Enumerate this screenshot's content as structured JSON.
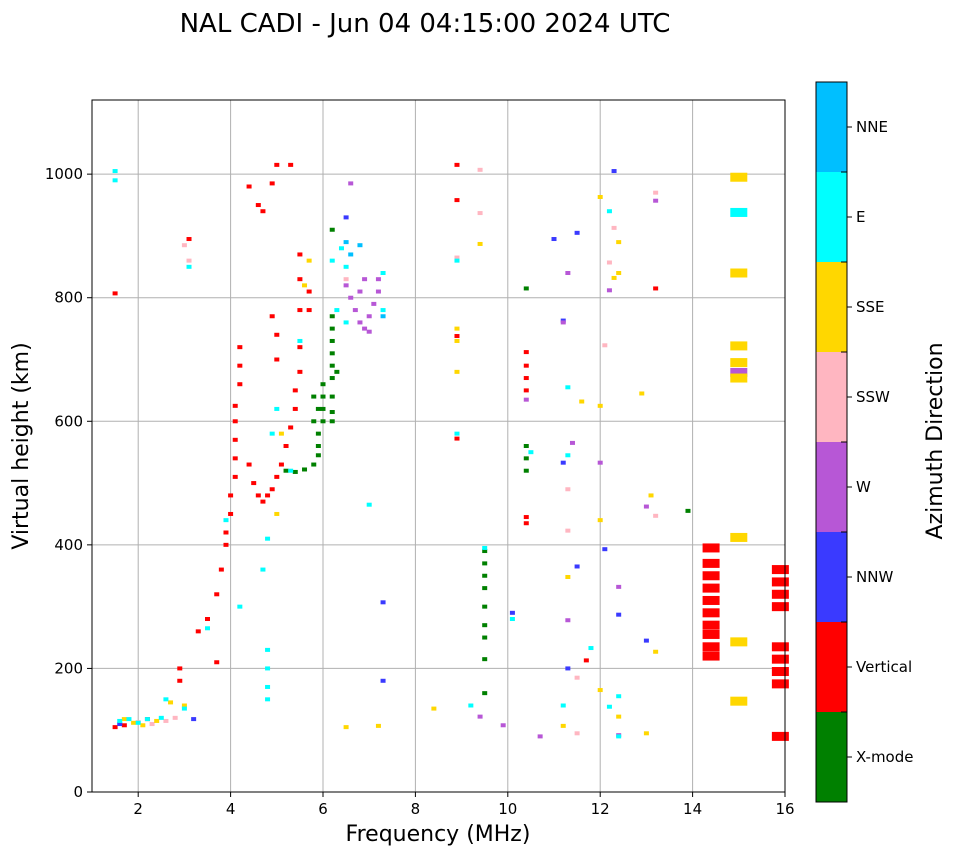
{
  "chart_data": {
    "type": "scatter",
    "title": "NAL CADI - Jun 04 04:15:00 2024 UTC",
    "xlabel": "Frequency (MHz)",
    "ylabel": "Virtual height (km)",
    "xlim": [
      1,
      16
    ],
    "ylim": [
      0,
      1120
    ],
    "xticks": [
      2,
      4,
      6,
      8,
      10,
      12,
      14,
      16
    ],
    "yticks": [
      0,
      200,
      400,
      600,
      800,
      1000
    ],
    "grid": true,
    "colorbar": {
      "label": "Azimuth Direction",
      "categories": [
        {
          "name": "X-mode",
          "color": "#008000"
        },
        {
          "name": "Vertical",
          "color": "#ff0000"
        },
        {
          "name": "NNW",
          "color": "#3a3aff"
        },
        {
          "name": "W",
          "color": "#b757d6"
        },
        {
          "name": "SSW",
          "color": "#ffb6c1"
        },
        {
          "name": "SSE",
          "color": "#ffd700"
        },
        {
          "name": "E",
          "color": "#00ffff"
        },
        {
          "name": "NNE",
          "color": "#00bfff"
        }
      ]
    },
    "series": [
      {
        "name": "X-mode",
        "points": [
          [
            5.2,
            520
          ],
          [
            5.4,
            518
          ],
          [
            5.6,
            522
          ],
          [
            5.8,
            530
          ],
          [
            5.9,
            545
          ],
          [
            5.9,
            560
          ],
          [
            5.9,
            580
          ],
          [
            6.0,
            600
          ],
          [
            6.0,
            620
          ],
          [
            6.0,
            640
          ],
          [
            6.0,
            660
          ],
          [
            6.2,
            640
          ],
          [
            6.2,
            670
          ],
          [
            6.2,
            690
          ],
          [
            6.2,
            710
          ],
          [
            6.2,
            730
          ],
          [
            6.2,
            750
          ],
          [
            5.8,
            600
          ],
          [
            5.8,
            640
          ],
          [
            5.9,
            620
          ],
          [
            6.2,
            615
          ],
          [
            6.2,
            600
          ],
          [
            6.3,
            680
          ],
          [
            6.2,
            770
          ],
          [
            9.5,
            390
          ],
          [
            9.5,
            370
          ],
          [
            9.5,
            350
          ],
          [
            9.5,
            330
          ],
          [
            9.5,
            300
          ],
          [
            9.5,
            270
          ],
          [
            9.5,
            250
          ],
          [
            9.5,
            215
          ],
          [
            9.5,
            160
          ],
          [
            10.4,
            560
          ],
          [
            10.4,
            540
          ],
          [
            10.4,
            520
          ],
          [
            10.4,
            815
          ],
          [
            13.9,
            455
          ],
          [
            6.2,
            910
          ]
        ]
      },
      {
        "name": "Vertical",
        "points": [
          [
            1.5,
            105
          ],
          [
            1.5,
            807
          ],
          [
            2.9,
            200
          ],
          [
            2.9,
            180
          ],
          [
            3.3,
            260
          ],
          [
            3.5,
            280
          ],
          [
            3.7,
            320
          ],
          [
            3.8,
            360
          ],
          [
            3.9,
            400
          ],
          [
            3.9,
            420
          ],
          [
            4.0,
            450
          ],
          [
            4.0,
            480
          ],
          [
            4.1,
            510
          ],
          [
            4.1,
            540
          ],
          [
            4.1,
            570
          ],
          [
            4.1,
            600
          ],
          [
            4.1,
            625
          ],
          [
            4.2,
            660
          ],
          [
            4.2,
            690
          ],
          [
            4.2,
            720
          ],
          [
            4.4,
            530
          ],
          [
            4.5,
            500
          ],
          [
            4.6,
            480
          ],
          [
            4.7,
            470
          ],
          [
            4.8,
            480
          ],
          [
            4.9,
            490
          ],
          [
            5.0,
            510
          ],
          [
            5.1,
            530
          ],
          [
            5.2,
            560
          ],
          [
            5.3,
            590
          ],
          [
            5.4,
            620
          ],
          [
            5.4,
            650
          ],
          [
            5.5,
            680
          ],
          [
            5.5,
            720
          ],
          [
            5.5,
            780
          ],
          [
            5.5,
            830
          ],
          [
            5.5,
            870
          ],
          [
            5.0,
            700
          ],
          [
            5.0,
            740
          ],
          [
            4.9,
            770
          ],
          [
            4.4,
            980
          ],
          [
            4.6,
            950
          ],
          [
            4.7,
            940
          ],
          [
            4.9,
            985
          ],
          [
            5.0,
            1015
          ],
          [
            5.3,
            1015
          ],
          [
            5.7,
            810
          ],
          [
            5.7,
            780
          ],
          [
            3.7,
            210
          ],
          [
            3.1,
            895
          ],
          [
            8.9,
            1015
          ],
          [
            8.9,
            958
          ],
          [
            8.9,
            738
          ],
          [
            8.9,
            572
          ],
          [
            10.4,
            712
          ],
          [
            10.4,
            690
          ],
          [
            10.4,
            670
          ],
          [
            10.4,
            650
          ],
          [
            10.4,
            445
          ],
          [
            10.4,
            435
          ],
          [
            14.4,
            395
          ],
          [
            14.4,
            370
          ],
          [
            14.4,
            350
          ],
          [
            14.4,
            330
          ],
          [
            14.4,
            310
          ],
          [
            14.4,
            290
          ],
          [
            14.4,
            270
          ],
          [
            14.4,
            255
          ],
          [
            14.4,
            235
          ],
          [
            14.4,
            220
          ],
          [
            15.9,
            360
          ],
          [
            15.9,
            340
          ],
          [
            15.9,
            320
          ],
          [
            15.9,
            300
          ],
          [
            15.9,
            235
          ],
          [
            15.9,
            215
          ],
          [
            15.9,
            195
          ],
          [
            15.9,
            175
          ],
          [
            15.9,
            90
          ],
          [
            13.2,
            815
          ],
          [
            11.7,
            213
          ],
          [
            1.7,
            108
          ],
          [
            2.2,
            118
          ]
        ]
      },
      {
        "name": "NNW",
        "points": [
          [
            6.5,
            930
          ],
          [
            12.3,
            1005
          ],
          [
            11.5,
            905
          ],
          [
            11.0,
            895
          ],
          [
            11.2,
            763
          ],
          [
            10.1,
            290
          ],
          [
            12.4,
            287
          ],
          [
            11.5,
            365
          ],
          [
            12.1,
            393
          ],
          [
            13.0,
            245
          ],
          [
            11.3,
            200
          ],
          [
            11.2,
            533
          ],
          [
            7.3,
            307
          ],
          [
            7.3,
            180
          ],
          [
            3.2,
            118
          ],
          [
            1.6,
            110
          ]
        ]
      },
      {
        "name": "W",
        "points": [
          [
            6.5,
            820
          ],
          [
            6.6,
            800
          ],
          [
            6.7,
            780
          ],
          [
            6.8,
            760
          ],
          [
            6.9,
            750
          ],
          [
            7.0,
            770
          ],
          [
            7.1,
            790
          ],
          [
            7.2,
            810
          ],
          [
            7.2,
            830
          ],
          [
            6.9,
            830
          ],
          [
            6.8,
            810
          ],
          [
            7.0,
            745
          ],
          [
            6.6,
            985
          ],
          [
            11.3,
            840
          ],
          [
            11.2,
            760
          ],
          [
            11.3,
            278
          ],
          [
            12.4,
            332
          ],
          [
            12.0,
            533
          ],
          [
            10.4,
            635
          ],
          [
            11.4,
            565
          ],
          [
            13.2,
            957
          ],
          [
            15.0,
            679
          ],
          [
            13.0,
            462
          ],
          [
            10.7,
            90
          ],
          [
            9.9,
            108
          ],
          [
            12.2,
            812
          ],
          [
            9.4,
            122
          ],
          [
            12.4,
            92
          ]
        ]
      },
      {
        "name": "SSW",
        "points": [
          [
            2.0,
            113
          ],
          [
            2.3,
            110
          ],
          [
            2.6,
            115
          ],
          [
            2.8,
            120
          ],
          [
            3.0,
            885
          ],
          [
            3.1,
            860
          ],
          [
            8.9,
            865
          ],
          [
            9.4,
            1007
          ],
          [
            9.4,
            937
          ],
          [
            12.3,
            913
          ],
          [
            13.2,
            970
          ],
          [
            12.2,
            857
          ],
          [
            11.3,
            490
          ],
          [
            11.3,
            423
          ],
          [
            11.5,
            185
          ],
          [
            11.5,
            95
          ],
          [
            13.2,
            447
          ],
          [
            12.1,
            723
          ],
          [
            6.5,
            830
          ]
        ]
      },
      {
        "name": "SSE",
        "points": [
          [
            1.7,
            118
          ],
          [
            1.9,
            112
          ],
          [
            2.1,
            108
          ],
          [
            2.4,
            115
          ],
          [
            2.7,
            145
          ],
          [
            3.0,
            140
          ],
          [
            5.0,
            450
          ],
          [
            5.1,
            580
          ],
          [
            5.7,
            860
          ],
          [
            5.6,
            820
          ],
          [
            8.9,
            750
          ],
          [
            8.9,
            730
          ],
          [
            8.9,
            680
          ],
          [
            9.4,
            887
          ],
          [
            12.0,
            963
          ],
          [
            12.4,
            890
          ],
          [
            12.4,
            840
          ],
          [
            12.3,
            832
          ],
          [
            15.0,
            840
          ],
          [
            15.0,
            722
          ],
          [
            15.0,
            695
          ],
          [
            15.0,
            670
          ],
          [
            15.0,
            412
          ],
          [
            15.0,
            243
          ],
          [
            15.0,
            147
          ],
          [
            13.2,
            227
          ],
          [
            13.1,
            480
          ],
          [
            12.9,
            645
          ],
          [
            11.6,
            632
          ],
          [
            11.3,
            348
          ],
          [
            12.0,
            625
          ],
          [
            12.0,
            440
          ],
          [
            12.0,
            165
          ],
          [
            12.4,
            122
          ],
          [
            11.2,
            107
          ],
          [
            13.0,
            95
          ],
          [
            8.4,
            135
          ],
          [
            6.5,
            105
          ],
          [
            7.2,
            107
          ],
          [
            15.0,
            995
          ]
        ]
      },
      {
        "name": "E",
        "points": [
          [
            1.5,
            990
          ],
          [
            1.5,
            1005
          ],
          [
            1.6,
            115
          ],
          [
            1.8,
            118
          ],
          [
            2.0,
            112
          ],
          [
            2.2,
            118
          ],
          [
            2.5,
            120
          ],
          [
            2.6,
            150
          ],
          [
            3.0,
            135
          ],
          [
            3.1,
            850
          ],
          [
            3.5,
            265
          ],
          [
            3.9,
            440
          ],
          [
            4.2,
            300
          ],
          [
            4.7,
            360
          ],
          [
            4.8,
            230
          ],
          [
            4.8,
            200
          ],
          [
            4.8,
            170
          ],
          [
            4.8,
            150
          ],
          [
            4.8,
            410
          ],
          [
            4.9,
            580
          ],
          [
            5.0,
            620
          ],
          [
            5.3,
            520
          ],
          [
            5.5,
            730
          ],
          [
            6.2,
            860
          ],
          [
            6.4,
            880
          ],
          [
            6.5,
            850
          ],
          [
            6.3,
            780
          ],
          [
            6.5,
            760
          ],
          [
            7.3,
            840
          ],
          [
            7.3,
            780
          ],
          [
            7.0,
            465
          ],
          [
            8.9,
            860
          ],
          [
            8.9,
            580
          ],
          [
            9.5,
            395
          ],
          [
            10.1,
            280
          ],
          [
            12.2,
            940
          ],
          [
            15.0,
            938
          ],
          [
            11.3,
            655
          ],
          [
            11.8,
            233
          ],
          [
            12.2,
            138
          ],
          [
            12.4,
            155
          ],
          [
            11.3,
            545
          ],
          [
            10.5,
            550
          ],
          [
            9.2,
            140
          ],
          [
            12.4,
            90
          ],
          [
            11.2,
            140
          ]
        ]
      },
      {
        "name": "NNE",
        "points": [
          [
            6.8,
            885
          ],
          [
            6.5,
            890
          ],
          [
            6.6,
            870
          ],
          [
            7.3,
            770
          ]
        ]
      }
    ]
  }
}
